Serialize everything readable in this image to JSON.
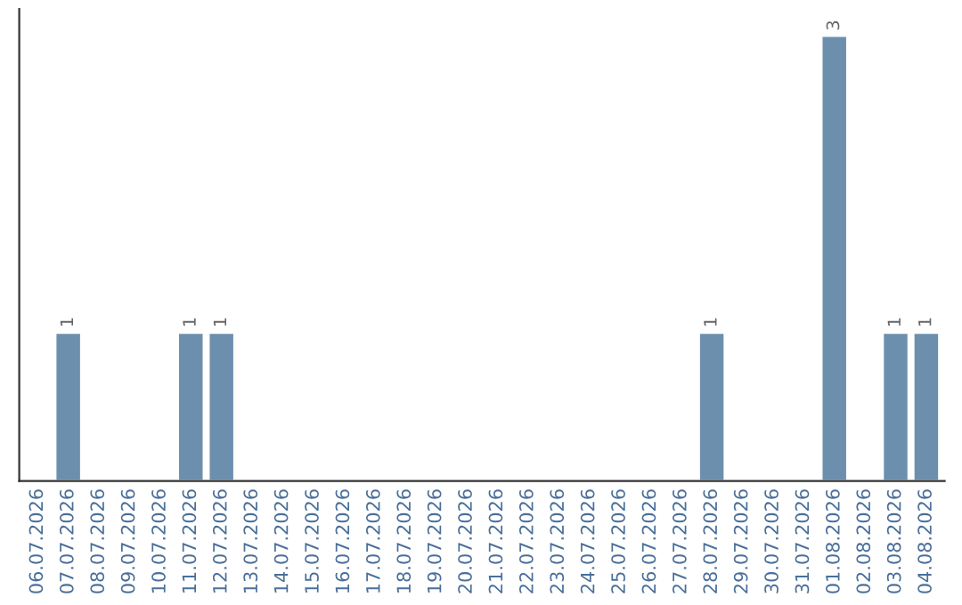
{
  "chart_data": {
    "type": "bar",
    "categories": [
      "06.07.2026",
      "07.07.2026",
      "08.07.2026",
      "09.07.2026",
      "10.07.2026",
      "11.07.2026",
      "12.07.2026",
      "13.07.2026",
      "14.07.2026",
      "15.07.2026",
      "16.07.2026",
      "17.07.2026",
      "18.07.2026",
      "19.07.2026",
      "20.07.2026",
      "21.07.2026",
      "22.07.2026",
      "23.07.2026",
      "24.07.2026",
      "25.07.2026",
      "26.07.2026",
      "27.07.2026",
      "28.07.2026",
      "29.07.2026",
      "30.07.2026",
      "31.07.2026",
      "01.08.2026",
      "02.08.2026",
      "03.08.2026",
      "04.08.2026"
    ],
    "values": [
      0,
      1,
      0,
      0,
      0,
      1,
      1,
      0,
      0,
      0,
      0,
      0,
      0,
      0,
      0,
      0,
      0,
      0,
      0,
      0,
      0,
      0,
      1,
      0,
      0,
      0,
      3,
      0,
      1,
      1
    ],
    "color": "#6d8fae",
    "value_labels": [
      null,
      "1",
      null,
      null,
      null,
      "1",
      "1",
      null,
      null,
      null,
      null,
      null,
      null,
      null,
      null,
      null,
      null,
      null,
      null,
      null,
      null,
      null,
      "1",
      null,
      null,
      null,
      "3",
      null,
      "1",
      "1"
    ],
    "tick_labels": "x",
    "grid": false,
    "legend": false
  }
}
